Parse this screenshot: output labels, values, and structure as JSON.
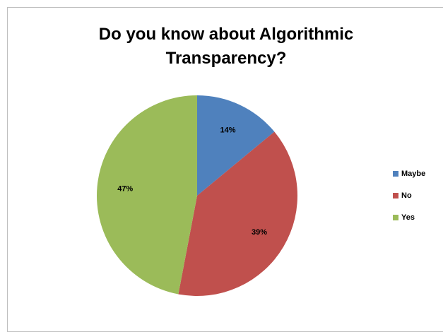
{
  "chart_data": {
    "type": "pie",
    "title": "Do you know about Algorithmic Transparency?",
    "categories": [
      "Maybe",
      "No",
      "Yes"
    ],
    "values": [
      14,
      39,
      47
    ],
    "value_labels": [
      "14%",
      "39%",
      "47%"
    ],
    "colors": [
      "#4f81bd",
      "#c0504d",
      "#9bbb59"
    ],
    "legend": "right"
  }
}
